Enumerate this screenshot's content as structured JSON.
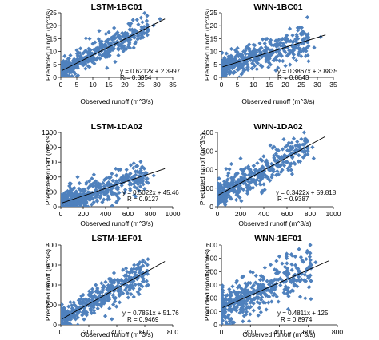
{
  "chart_data": [
    {
      "type": "scatter",
      "title": "LSTM-1BC01",
      "xlabel": "Observed runoff (m^3/s)",
      "ylabel": "Predicted runoff (m^3/s)",
      "xlim": [
        0,
        35
      ],
      "ylim": [
        0,
        25
      ],
      "xticks": [
        0,
        5,
        10,
        15,
        20,
        25,
        30,
        35
      ],
      "yticks": [
        0,
        5,
        10,
        15,
        20,
        25
      ],
      "xtick_labels": [
        "0",
        "5",
        "10",
        "15",
        "20",
        "25",
        "30",
        "35"
      ],
      "ytick_labels": [
        "0",
        "5",
        "10",
        "15",
        "20",
        "25"
      ],
      "fit": {
        "slope": 0.6212,
        "intercept": 2.3997
      },
      "equation": "y = 0.6212x + 2.3997",
      "r_value": "R = 0.8954",
      "spread": 0.17,
      "points": [
        [
          1,
          2.8
        ],
        [
          2,
          3.2
        ],
        [
          3,
          4.1
        ],
        [
          4,
          4.6
        ],
        [
          5,
          5.4
        ],
        [
          6,
          6.3
        ],
        [
          7,
          6.8
        ],
        [
          8,
          7.5
        ],
        [
          9,
          8.1
        ],
        [
          10,
          8.7
        ],
        [
          12,
          10.2
        ],
        [
          14,
          11.3
        ],
        [
          16,
          12.6
        ],
        [
          18,
          13.5
        ],
        [
          20,
          14.6
        ],
        [
          22,
          15.9
        ],
        [
          25,
          17.2
        ],
        [
          27,
          18.9
        ],
        [
          29,
          20.1
        ],
        [
          31,
          22.6
        ],
        [
          10,
          13.0
        ],
        [
          15,
          17.5
        ],
        [
          12,
          18.0
        ],
        [
          9,
          15.0
        ],
        [
          5,
          10.5
        ],
        [
          3,
          8.5
        ]
      ]
    },
    {
      "type": "scatter",
      "title": "WNN-1BC01",
      "xlabel": "Observed runoff (m^3/s)",
      "ylabel": "Predicted runoff (m^3/s)",
      "xlim": [
        0,
        35
      ],
      "ylim": [
        0,
        25
      ],
      "xticks": [
        0,
        5,
        10,
        15,
        20,
        25,
        30,
        35
      ],
      "yticks": [
        0,
        5,
        10,
        15,
        20,
        25
      ],
      "xtick_labels": [
        "0",
        "5",
        "10",
        "15",
        "20",
        "25",
        "30",
        "35"
      ],
      "ytick_labels": [
        "0",
        "5",
        "10",
        "15",
        "20",
        "25"
      ],
      "fit": {
        "slope": 0.3867,
        "intercept": 3.8835
      },
      "equation": "y = 0.3867x + 3.8835",
      "r_value": "R = 0.8843",
      "spread": 0.22,
      "points": [
        [
          1,
          4.2
        ],
        [
          2,
          4.6
        ],
        [
          3,
          5.0
        ],
        [
          4,
          5.5
        ],
        [
          5,
          5.9
        ],
        [
          6,
          6.2
        ],
        [
          7,
          6.7
        ],
        [
          8,
          7.0
        ],
        [
          10,
          7.8
        ],
        [
          12,
          8.5
        ],
        [
          14,
          9.2
        ],
        [
          16,
          10.0
        ],
        [
          18,
          10.6
        ],
        [
          20,
          11.7
        ],
        [
          22,
          12.3
        ],
        [
          25,
          13.1
        ],
        [
          27,
          13.6
        ],
        [
          29,
          11.5
        ],
        [
          31,
          15.6
        ],
        [
          8,
          11.8
        ],
        [
          10,
          12.6
        ],
        [
          12,
          13.2
        ],
        [
          17,
          14.2
        ],
        [
          3,
          8.3
        ],
        [
          5,
          9.8
        ]
      ]
    },
    {
      "type": "scatter",
      "title": "LSTM-1DA02",
      "xlabel": "Observed runoff (m^3/s)",
      "ylabel": "Predicted runoff (m^3/s)",
      "xlim": [
        0,
        1000
      ],
      "ylim": [
        0,
        1000
      ],
      "xticks": [
        0,
        200,
        400,
        600,
        800,
        1000
      ],
      "yticks": [
        0,
        200,
        400,
        600,
        800,
        1000
      ],
      "xtick_labels": [
        "0",
        "200",
        "400",
        "600",
        "800",
        "1000"
      ],
      "ytick_labels": [
        "0",
        "200",
        "400",
        "600",
        "800",
        "1000"
      ],
      "fit": {
        "slope": 0.5022,
        "intercept": 45.46
      },
      "equation": "y = 0.5022x + 45.46",
      "r_value": "R = 0.9127",
      "spread": 0.2,
      "points": [
        [
          20,
          60
        ],
        [
          50,
          75
        ],
        [
          80,
          90
        ],
        [
          100,
          100
        ],
        [
          130,
          120
        ],
        [
          160,
          130
        ],
        [
          200,
          150
        ],
        [
          240,
          170
        ],
        [
          280,
          190
        ],
        [
          320,
          210
        ],
        [
          360,
          230
        ],
        [
          400,
          250
        ],
        [
          440,
          270
        ],
        [
          480,
          290
        ],
        [
          500,
          300
        ],
        [
          540,
          320
        ],
        [
          560,
          330
        ],
        [
          600,
          360
        ],
        [
          660,
          360
        ],
        [
          700,
          380
        ],
        [
          760,
          450
        ],
        [
          830,
          420
        ],
        [
          90,
          310
        ],
        [
          150,
          400
        ]
      ]
    },
    {
      "type": "scatter",
      "title": "WNN-1DA02",
      "xlabel": "Observed runoff (m^3/s)",
      "ylabel": "Predicted runoff (m^3/s)",
      "xlim": [
        0,
        1000
      ],
      "ylim": [
        0,
        400
      ],
      "xticks": [
        0,
        200,
        400,
        600,
        800,
        1000
      ],
      "yticks": [
        0,
        100,
        200,
        300,
        400
      ],
      "xtick_labels": [
        "0",
        "200",
        "400",
        "600",
        "800",
        "1000"
      ],
      "ytick_labels": [
        "0",
        "100",
        "200",
        "300",
        "400"
      ],
      "fit": {
        "slope": 0.3422,
        "intercept": 59.818
      },
      "equation": "y = 0.3422x + 59.818",
      "r_value": "R = 0.9387",
      "spread": 0.19,
      "points": [
        [
          20,
          60
        ],
        [
          50,
          75
        ],
        [
          80,
          85
        ],
        [
          100,
          95
        ],
        [
          130,
          105
        ],
        [
          160,
          115
        ],
        [
          200,
          130
        ],
        [
          240,
          140
        ],
        [
          280,
          155
        ],
        [
          320,
          170
        ],
        [
          360,
          180
        ],
        [
          400,
          195
        ],
        [
          440,
          210
        ],
        [
          480,
          225
        ],
        [
          520,
          240
        ],
        [
          560,
          255
        ],
        [
          600,
          270
        ],
        [
          640,
          275
        ],
        [
          680,
          290
        ],
        [
          780,
          300
        ],
        [
          820,
          320
        ],
        [
          830,
          260
        ],
        [
          120,
          230
        ],
        [
          200,
          260
        ]
      ]
    },
    {
      "type": "scatter",
      "title": "LSTM-1EF01",
      "xlabel": "Observed runoff (m^3/s)",
      "ylabel": "Predicted runoff (m^3/s)",
      "xlim": [
        0,
        800
      ],
      "ylim": [
        0,
        800
      ],
      "xticks": [
        0,
        200,
        400,
        600,
        800
      ],
      "yticks": [
        0,
        200,
        400,
        600,
        800
      ],
      "xtick_labels": [
        "0",
        "200",
        "400",
        "600",
        "800"
      ],
      "ytick_labels": [
        "0",
        "200",
        "400",
        "600",
        "800"
      ],
      "fit": {
        "slope": 0.7851,
        "intercept": 51.76
      },
      "equation": "y = 0.7851x + 51.76",
      "r_value": "R = 0.9469",
      "spread": 0.18,
      "points": [
        [
          20,
          70
        ],
        [
          40,
          80
        ],
        [
          60,
          95
        ],
        [
          80,
          110
        ],
        [
          100,
          130
        ],
        [
          140,
          160
        ],
        [
          180,
          190
        ],
        [
          220,
          225
        ],
        [
          260,
          255
        ],
        [
          300,
          290
        ],
        [
          340,
          320
        ],
        [
          380,
          350
        ],
        [
          420,
          380
        ],
        [
          460,
          410
        ],
        [
          500,
          440
        ],
        [
          540,
          470
        ],
        [
          580,
          500
        ],
        [
          620,
          540
        ],
        [
          160,
          300
        ],
        [
          250,
          400
        ],
        [
          320,
          430
        ],
        [
          380,
          520
        ]
      ]
    },
    {
      "type": "scatter",
      "title": "WNN-1EF01",
      "xlabel": "Observed runoff (m^3/s)",
      "ylabel": "Predicted runoff (m^3/s)",
      "xlim": [
        0,
        800
      ],
      "ylim": [
        0,
        600
      ],
      "xticks": [
        0,
        200,
        400,
        600,
        800
      ],
      "yticks": [
        0,
        100,
        200,
        300,
        400,
        500,
        600
      ],
      "xtick_labels": [
        "0",
        "200",
        "400",
        "600",
        "800"
      ],
      "ytick_labels": [
        "0",
        "100",
        "200",
        "300",
        "400",
        "500",
        "600"
      ],
      "fit": {
        "slope": 0.4811,
        "intercept": 125
      },
      "equation": "y = 0.4811x + 125",
      "r_value": "R = 0.8974",
      "spread": 0.28,
      "points": [
        [
          20,
          130
        ],
        [
          50,
          150
        ],
        [
          80,
          160
        ],
        [
          100,
          170
        ],
        [
          140,
          185
        ],
        [
          180,
          210
        ],
        [
          220,
          230
        ],
        [
          260,
          250
        ],
        [
          300,
          270
        ],
        [
          340,
          290
        ],
        [
          380,
          310
        ],
        [
          420,
          330
        ],
        [
          460,
          350
        ],
        [
          500,
          370
        ],
        [
          540,
          390
        ],
        [
          580,
          400
        ],
        [
          620,
          450
        ],
        [
          650,
          470
        ],
        [
          200,
          400
        ],
        [
          300,
          430
        ],
        [
          380,
          480
        ],
        [
          450,
          500
        ]
      ]
    }
  ]
}
